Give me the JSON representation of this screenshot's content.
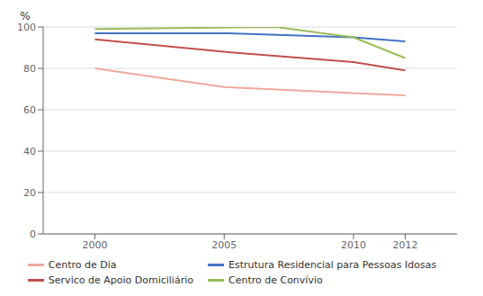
{
  "chart_data": {
    "type": "line",
    "ylabel": "%",
    "series": [
      {
        "name": "Centro de Dia",
        "color": "#F0A89E",
        "x": [
          2000,
          2005,
          2010,
          2012
        ],
        "values": [
          80,
          71,
          68,
          67
        ]
      },
      {
        "name": "Estrutura Residencial para Pessoas Idosas",
        "color": "#4472C4",
        "x": [
          2000,
          2005,
          2010,
          2012
        ],
        "values": [
          97,
          97,
          95,
          93
        ]
      },
      {
        "name": "Servico de Apoio Domiciliário",
        "color": "#C0504D",
        "x": [
          2000,
          2005,
          2010,
          2012
        ],
        "values": [
          94,
          88,
          83,
          79
        ]
      },
      {
        "name": "Centro de Convívio",
        "color": "#9BBB59",
        "x": [
          2000,
          2007,
          2010,
          2012
        ],
        "values": [
          99,
          100,
          95,
          85
        ]
      }
    ],
    "xlim": [
      1998,
      2014
    ],
    "ylim": [
      0,
      100
    ],
    "xticks": [
      2000,
      2005,
      2010,
      2012
    ],
    "yticks": [
      0,
      20,
      40,
      60,
      80,
      100
    ],
    "grid": true,
    "legend": "bottom"
  }
}
